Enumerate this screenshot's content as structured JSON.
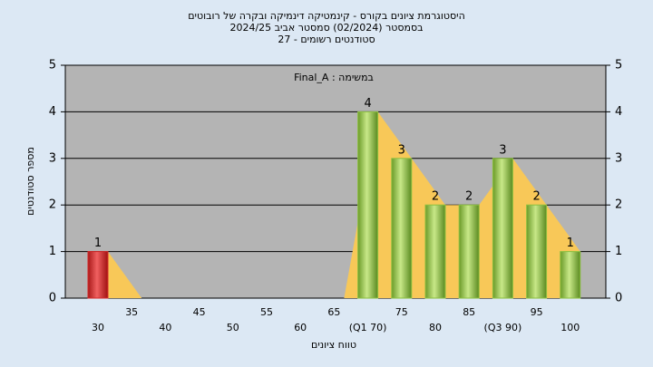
{
  "chart_data": {
    "type": "bar",
    "title_lines": [
      "היסטוגרמת ציונים בקורס - קינמטיקה דינמיקה ובקרה של רובוטים",
      "בסמסטר  (02/2024)  סמסטר אביב 2024/25",
      "סטודנטים רשומים - 27"
    ],
    "annotation": "Final_A : במשימה",
    "ylabel": "מספר סטודנטים",
    "xlabel": "טווח ציונים",
    "categories": [
      "30",
      "35",
      "40",
      "45",
      "50",
      "55",
      "60",
      "65",
      "(Q1 70)",
      "75",
      "80",
      "85",
      "(Q3 90)",
      "95",
      "100"
    ],
    "values": [
      1,
      0,
      0,
      0,
      0,
      0,
      0,
      0,
      4,
      3,
      2,
      2,
      3,
      2,
      1
    ],
    "colors": [
      "#d42a2a",
      "#8cc040",
      "#8cc040",
      "#8cc040",
      "#8cc040",
      "#8cc040",
      "#8cc040",
      "#8cc040",
      "#8cc040",
      "#8cc040",
      "#8cc040",
      "#8cc040",
      "#8cc040",
      "#8cc040",
      "#8cc040"
    ],
    "area_color": "#f8c858",
    "ylim": [
      0,
      5
    ],
    "yticks": [
      0,
      1,
      2,
      3,
      4,
      5
    ],
    "y2lim": [
      0,
      5
    ],
    "y2ticks": [
      0,
      1,
      2,
      3,
      4,
      5
    ],
    "grid": true
  }
}
